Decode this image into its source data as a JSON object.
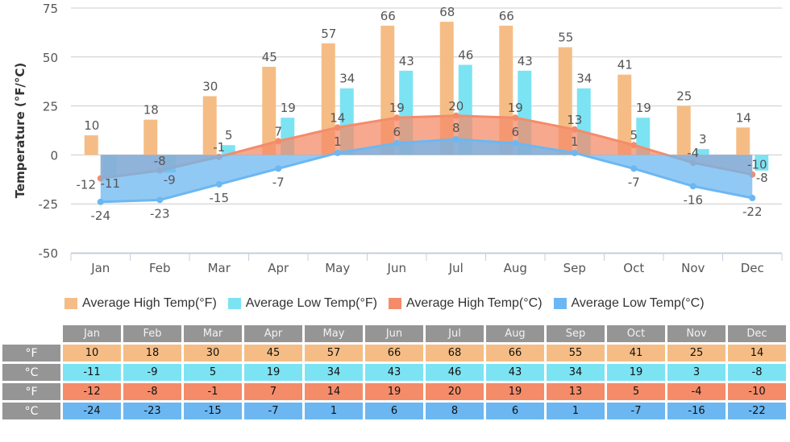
{
  "chart_data": {
    "type": "bar+area",
    "ylabel": "Temperature (°F/°C)",
    "ylim": [
      -50,
      75
    ],
    "yticks": [
      -50,
      -25,
      0,
      25,
      50,
      75
    ],
    "grid": true,
    "legend_placement": "bottom",
    "categories": [
      "Jan",
      "Feb",
      "Mar",
      "Apr",
      "May",
      "Jun",
      "Jul",
      "Aug",
      "Sep",
      "Oct",
      "Nov",
      "Dec"
    ],
    "series": [
      {
        "name": "Average High Temp(°F)",
        "kind": "bar",
        "color": "#f5bd85",
        "values": [
          10,
          18,
          30,
          45,
          57,
          66,
          68,
          66,
          55,
          41,
          25,
          14
        ]
      },
      {
        "name": "Average Low Temp(°F)",
        "kind": "bar",
        "color": "#7ce3f3",
        "values": [
          -11,
          -9,
          5,
          19,
          34,
          43,
          46,
          43,
          34,
          19,
          3,
          -8
        ]
      },
      {
        "name": "Average High Temp(°C)",
        "kind": "area",
        "color": "#f48c6a",
        "values": [
          -12,
          -8,
          -1,
          7,
          14,
          19,
          20,
          19,
          13,
          5,
          -4,
          -10
        ]
      },
      {
        "name": "Average Low Temp(°C)",
        "kind": "area",
        "color": "#6cb7f2",
        "values": [
          -24,
          -23,
          -15,
          -7,
          1,
          6,
          8,
          6,
          1,
          -7,
          -16,
          -22
        ]
      }
    ]
  },
  "table": {
    "row_labels": [
      "°F",
      "°C",
      "°F",
      "°C"
    ]
  }
}
